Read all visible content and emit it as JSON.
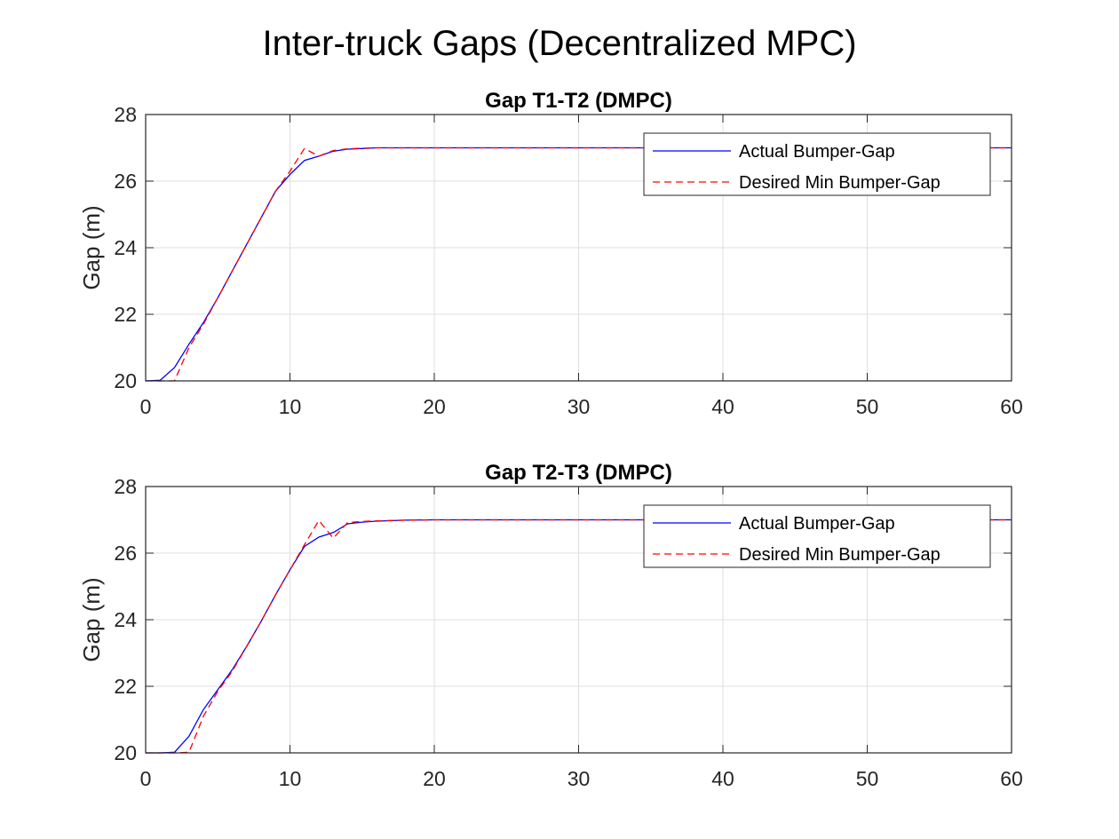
{
  "figure": {
    "title": "Inter-truck Gaps (Decentralized MPC)"
  },
  "chart_data": [
    {
      "type": "line",
      "title": "Gap T1-T2 (DMPC)",
      "xlabel": "",
      "ylabel": "Gap (m)",
      "xlim": [
        0,
        60
      ],
      "ylim": [
        20,
        28
      ],
      "xticks": [
        0,
        10,
        20,
        30,
        40,
        50,
        60
      ],
      "yticks": [
        20,
        22,
        24,
        26,
        28
      ],
      "grid": true,
      "legend_position": "top-right",
      "series": [
        {
          "name": "Actual Bumper-Gap",
          "color": "#0000ff",
          "style": "solid",
          "x": [
            0,
            1,
            2,
            3,
            4,
            5,
            6,
            7,
            8,
            9,
            10,
            11,
            12,
            13,
            14,
            15,
            16,
            18,
            20,
            30,
            40,
            50,
            60
          ],
          "y": [
            20,
            20.02,
            20.4,
            21.1,
            21.75,
            22.5,
            23.3,
            24.1,
            24.9,
            25.7,
            26.2,
            26.62,
            26.75,
            26.9,
            26.96,
            26.98,
            27.0,
            27.0,
            27.0,
            27.0,
            27.0,
            27.0,
            27.0
          ]
        },
        {
          "name": "Desired Min Bumper-Gap",
          "color": "#ff0000",
          "style": "dashed",
          "x": [
            0,
            1,
            2,
            3,
            4,
            5,
            6,
            7,
            8,
            9,
            10,
            11,
            12,
            13,
            14,
            15,
            16,
            18,
            20,
            30,
            40,
            50,
            60
          ],
          "y": [
            20,
            20,
            20,
            21.0,
            21.7,
            22.5,
            23.3,
            24.1,
            24.9,
            25.7,
            26.3,
            26.98,
            26.75,
            26.92,
            26.97,
            26.99,
            27.0,
            27.0,
            27.0,
            27.0,
            27.0,
            27.0,
            27.0
          ]
        }
      ]
    },
    {
      "type": "line",
      "title": "Gap T2-T3 (DMPC)",
      "xlabel": "",
      "ylabel": "Gap (m)",
      "xlim": [
        0,
        60
      ],
      "ylim": [
        20,
        28
      ],
      "xticks": [
        0,
        10,
        20,
        30,
        40,
        50,
        60
      ],
      "yticks": [
        20,
        22,
        24,
        26,
        28
      ],
      "grid": true,
      "legend_position": "top-right",
      "series": [
        {
          "name": "Actual Bumper-Gap",
          "color": "#0000ff",
          "style": "solid",
          "x": [
            0,
            1,
            2,
            3,
            4,
            5,
            6,
            7,
            8,
            9,
            10,
            11,
            12,
            13,
            14,
            15,
            16,
            18,
            20,
            30,
            40,
            50,
            60
          ],
          "y": [
            20,
            20,
            20.02,
            20.5,
            21.3,
            21.9,
            22.5,
            23.2,
            23.95,
            24.75,
            25.5,
            26.2,
            26.48,
            26.62,
            26.88,
            26.93,
            26.96,
            26.99,
            27.0,
            27.0,
            27.0,
            27.0,
            27.0
          ]
        },
        {
          "name": "Desired Min Bumper-Gap",
          "color": "#ff0000",
          "style": "dashed",
          "x": [
            0,
            1,
            2,
            3,
            4,
            5,
            6,
            7,
            8,
            9,
            10,
            11,
            12,
            13,
            14,
            15,
            16,
            18,
            20,
            30,
            40,
            50,
            60
          ],
          "y": [
            20,
            20,
            20,
            20.02,
            21.1,
            21.85,
            22.45,
            23.2,
            23.95,
            24.75,
            25.5,
            26.25,
            26.98,
            26.45,
            26.92,
            26.95,
            26.97,
            26.99,
            27.0,
            27.0,
            27.0,
            27.0,
            27.0
          ]
        }
      ]
    }
  ]
}
